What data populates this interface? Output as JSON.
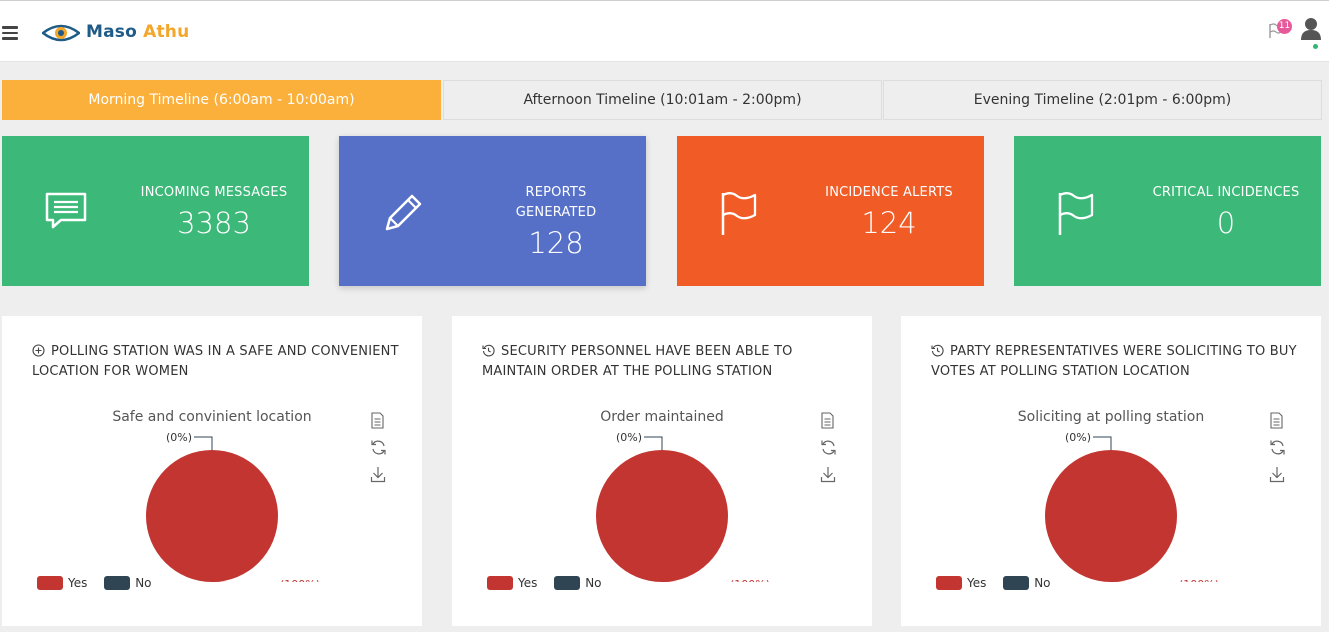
{
  "header": {
    "brand_first": "Maso",
    "brand_second": "Athu",
    "notification_count": "11",
    "icons": [
      "hamburger-menu-icon",
      "eye-logo-icon",
      "flag-icon",
      "user-icon"
    ]
  },
  "tabs": [
    {
      "label": "Morning Timeline (6:00am - 10:00am)",
      "active": true
    },
    {
      "label": "Afternoon Timeline (10:01am - 2:00pm)",
      "active": false
    },
    {
      "label": "Evening Timeline (2:01pm - 6:00pm)",
      "active": false
    }
  ],
  "stats": [
    {
      "label": "INCOMING MESSAGES",
      "value": "3383",
      "icon": "message-icon",
      "color": "#3cb878"
    },
    {
      "label": "REPORTS GENERATED",
      "value": "128",
      "icon": "pencil-icon",
      "color": "#5670c8"
    },
    {
      "label": "INCIDENCE ALERTS",
      "value": "124",
      "icon": "flag-icon",
      "color": "#f05b26"
    },
    {
      "label": "CRITICAL INCIDENCES",
      "value": "0",
      "icon": "flag-icon",
      "color": "#3cb878"
    }
  ],
  "cards": [
    {
      "title": "POLLING STATION WAS IN A SAFE AND CONVENIENT LOCATION FOR WOMEN",
      "title_icon": "plus-circle-icon",
      "chart_data": {
        "type": "pie",
        "title": "Safe and convinient location",
        "categories": [
          "Yes",
          "No"
        ],
        "values": [
          100,
          0
        ],
        "labels": [
          "(100%)",
          "(0%)"
        ],
        "colors": [
          "#c23531",
          "#2f4554"
        ]
      }
    },
    {
      "title": "SECURITY PERSONNEL HAVE BEEN ABLE TO MAINTAIN ORDER AT THE POLLING STATION",
      "title_icon": "history-icon",
      "chart_data": {
        "type": "pie",
        "title": "Order maintained",
        "categories": [
          "Yes",
          "No"
        ],
        "values": [
          100,
          0
        ],
        "labels": [
          "(100%)",
          "(0%)"
        ],
        "colors": [
          "#c23531",
          "#2f4554"
        ]
      }
    },
    {
      "title": "PARTY REPRESENTATIVES WERE SOLICITING TO BUY VOTES AT POLLING STATION LOCATION",
      "title_icon": "history-icon",
      "chart_data": {
        "type": "pie",
        "title": "Soliciting at polling station",
        "categories": [
          "Yes",
          "No"
        ],
        "values": [
          100,
          0
        ],
        "labels": [
          "(100%)",
          "(0%)"
        ],
        "colors": [
          "#c23531",
          "#2f4554"
        ]
      }
    }
  ],
  "chart_tools": [
    "data-view-icon",
    "restore-icon",
    "download-icon"
  ],
  "colors": {
    "accent": "#fbb03b",
    "brand_blue": "#1f5b86"
  }
}
